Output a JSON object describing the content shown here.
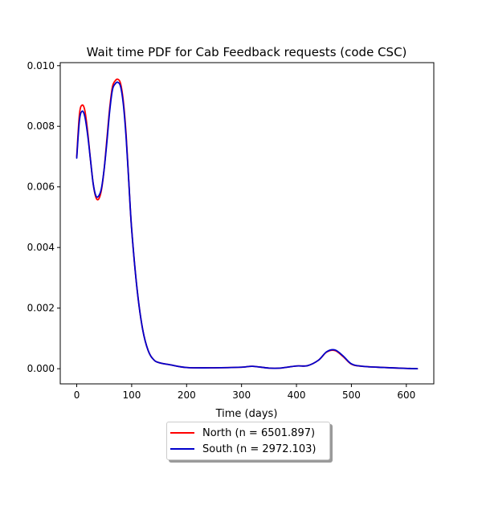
{
  "chart_data": {
    "type": "line",
    "title": "Wait time PDF for Cab Feedback  requests (code CSC)",
    "xlabel": "Time (days)",
    "ylabel": "",
    "xlim": [
      -30,
      650
    ],
    "ylim": [
      -0.0005,
      0.0101
    ],
    "xticks": [
      0,
      100,
      200,
      300,
      400,
      500,
      600
    ],
    "xtick_labels": [
      "0",
      "100",
      "200",
      "300",
      "400",
      "500",
      "600"
    ],
    "yticks": [
      0.0,
      0.002,
      0.004,
      0.006,
      0.008,
      0.01
    ],
    "ytick_labels": [
      "0.000",
      "0.002",
      "0.004",
      "0.006",
      "0.008",
      "0.010"
    ],
    "grid": false,
    "legend_position": "below",
    "series": [
      {
        "name": "North (n = 6501.897)",
        "color": "#ff0000",
        "x": [
          0,
          5,
          10,
          15,
          20,
          25,
          30,
          35,
          40,
          45,
          50,
          55,
          60,
          65,
          70,
          75,
          80,
          85,
          90,
          95,
          100,
          110,
          120,
          130,
          140,
          150,
          170,
          200,
          250,
          300,
          320,
          350,
          370,
          400,
          420,
          440,
          455,
          470,
          485,
          500,
          520,
          560,
          600,
          620
        ],
        "y": [
          0.007,
          0.0084,
          0.0087,
          0.0085,
          0.0078,
          0.0069,
          0.0061,
          0.00565,
          0.0056,
          0.0059,
          0.0066,
          0.0076,
          0.0086,
          0.0093,
          0.0095,
          0.00955,
          0.0094,
          0.0088,
          0.0077,
          0.0061,
          0.0046,
          0.0026,
          0.0013,
          0.0006,
          0.0003,
          0.0002,
          0.00013,
          4e-05,
          3e-05,
          5e-05,
          8e-05,
          2e-05,
          2e-05,
          9e-05,
          0.0001,
          0.00028,
          0.00055,
          0.0006,
          0.0004,
          0.00015,
          8e-05,
          4e-05,
          1e-05,
          0.0
        ]
      },
      {
        "name": "South (n = 2972.103)",
        "color": "#0000cc",
        "x": [
          0,
          5,
          10,
          15,
          20,
          25,
          30,
          35,
          40,
          45,
          50,
          55,
          60,
          65,
          70,
          75,
          80,
          85,
          90,
          95,
          100,
          110,
          120,
          130,
          140,
          150,
          170,
          200,
          250,
          300,
          320,
          350,
          370,
          400,
          420,
          440,
          455,
          470,
          485,
          500,
          520,
          560,
          600,
          620
        ],
        "y": [
          0.00695,
          0.0082,
          0.0085,
          0.0083,
          0.0077,
          0.0069,
          0.0061,
          0.0057,
          0.0057,
          0.00595,
          0.0066,
          0.0075,
          0.0085,
          0.0092,
          0.0094,
          0.00945,
          0.0093,
          0.0087,
          0.0076,
          0.0061,
          0.0046,
          0.0026,
          0.0013,
          0.0006,
          0.0003,
          0.0002,
          0.00013,
          4e-05,
          3e-05,
          5e-05,
          8e-05,
          2e-05,
          2e-05,
          9e-05,
          0.0001,
          0.00028,
          0.00056,
          0.00062,
          0.00042,
          0.00016,
          8e-05,
          4e-05,
          1e-05,
          0.0
        ]
      }
    ]
  }
}
